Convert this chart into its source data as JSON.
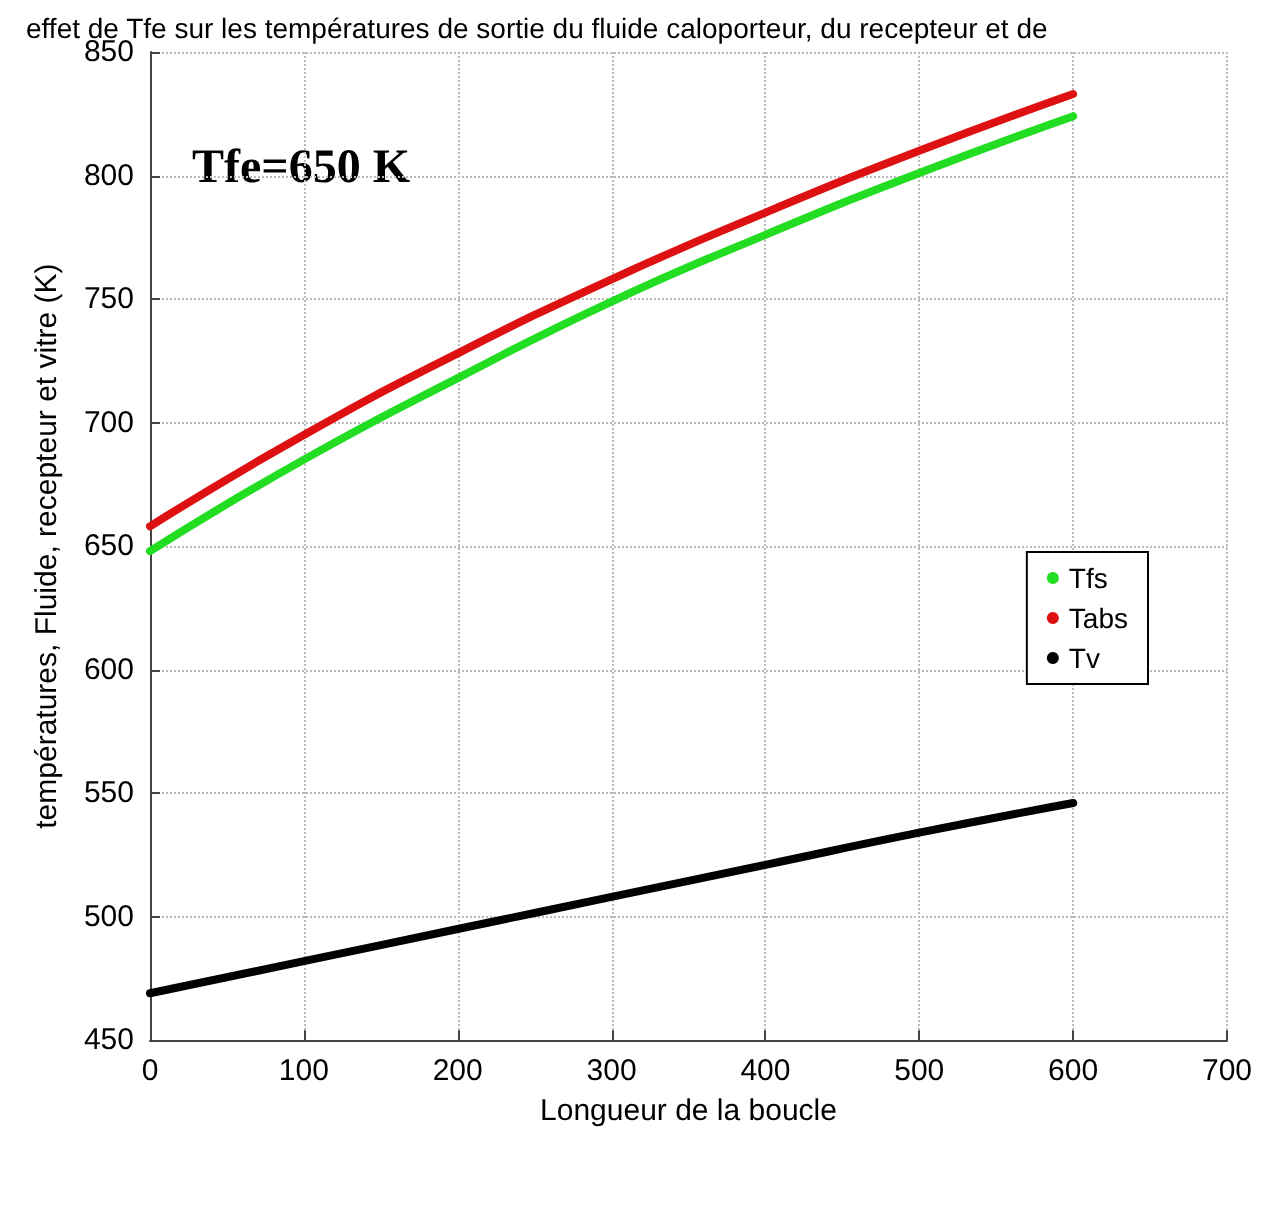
{
  "chart_data": {
    "type": "line",
    "title": "effet de Tfe sur les températures de sortie du fluide caloporteur, du recepteur et de",
    "xlabel": "Longueur de la boucle",
    "ylabel": "températures, Fluide, recepteur et vitre (K)",
    "x": [
      0,
      100,
      200,
      300,
      400,
      500,
      600
    ],
    "series": [
      {
        "name": "Tfs",
        "color": "#22dd22",
        "values": [
          648,
          685,
          718,
          749,
          776,
          801,
          824
        ]
      },
      {
        "name": "Tabs",
        "color": "#dd1111",
        "values": [
          658,
          695,
          728,
          758,
          785,
          810,
          833
        ]
      },
      {
        "name": "Tv",
        "color": "#000000",
        "values": [
          469,
          482,
          495,
          508,
          521,
          534,
          546
        ]
      }
    ],
    "xlim": [
      0,
      700
    ],
    "xticks": [
      0,
      100,
      200,
      300,
      400,
      500,
      600,
      700
    ],
    "ylim": [
      450,
      850
    ],
    "yticks": [
      450,
      500,
      550,
      600,
      650,
      700,
      750,
      800,
      850
    ],
    "annotations": [
      "Tfe=650 K"
    ],
    "grid": true,
    "legend": "right",
    "line_style": "solid"
  }
}
